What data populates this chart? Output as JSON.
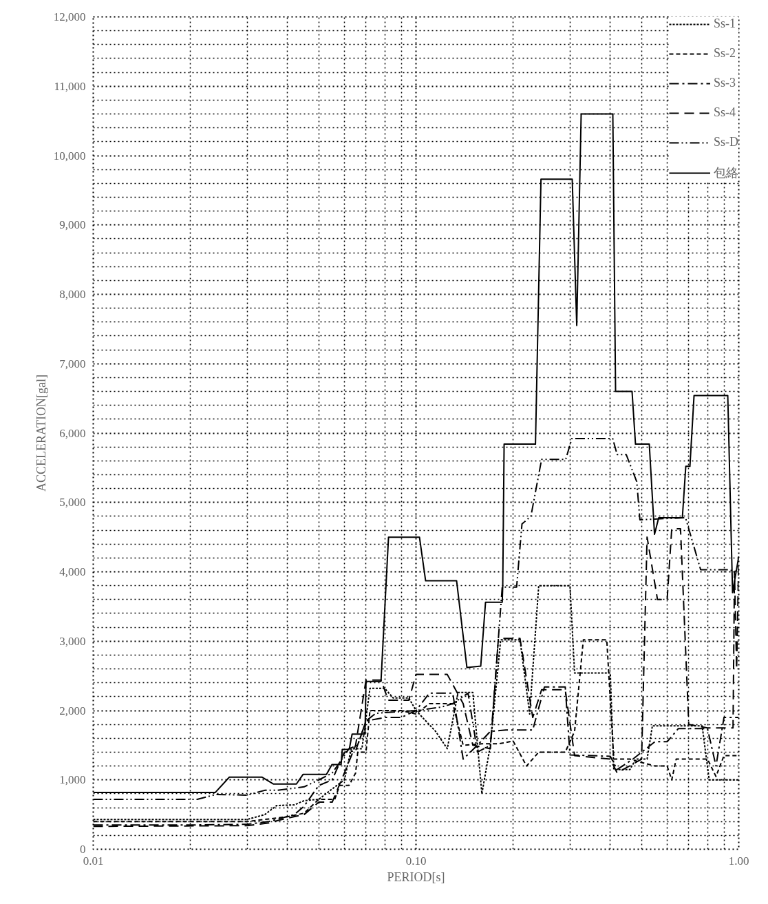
{
  "chart_data": {
    "type": "line",
    "xlabel": "PERIOD[s]",
    "ylabel": "ACCELERATION[gal]",
    "log": "x",
    "xlim": [
      0.01,
      1.0
    ],
    "ylim": [
      0,
      12000
    ],
    "xticks": [
      {
        "value": 0.01,
        "label": "0.01"
      },
      {
        "value": 0.1,
        "label": "0.10"
      },
      {
        "value": 1.0,
        "label": "1.00"
      }
    ],
    "yticks": [
      {
        "value": 0,
        "label": "0"
      },
      {
        "value": 1000,
        "label": "1,000"
      },
      {
        "value": 2000,
        "label": "2,000"
      },
      {
        "value": 3000,
        "label": "3,000"
      },
      {
        "value": 4000,
        "label": "4,000"
      },
      {
        "value": 5000,
        "label": "5,000"
      },
      {
        "value": 6000,
        "label": "6,000"
      },
      {
        "value": 7000,
        "label": "7,000"
      },
      {
        "value": 8000,
        "label": "8,000"
      },
      {
        "value": 9000,
        "label": "9,000"
      },
      {
        "value": 10000,
        "label": "10,000"
      },
      {
        "value": 11000,
        "label": "11,000"
      },
      {
        "value": 12000,
        "label": "12,000"
      }
    ],
    "grid": true,
    "legend": "top right",
    "marker": "none",
    "series": [
      {
        "name": "Ss-1",
        "color": "#000000",
        "line_style": "dotted",
        "x": [
          0.01,
          0.03,
          0.034,
          0.037,
          0.042,
          0.045,
          0.05,
          0.055,
          0.06,
          0.063,
          0.068,
          0.072,
          0.08,
          0.085,
          0.095,
          0.1,
          0.115,
          0.125,
          0.135,
          0.15,
          0.16,
          0.17,
          0.183,
          0.21,
          0.225,
          0.24,
          0.3,
          0.31,
          0.4,
          0.41,
          0.46,
          0.48,
          0.52,
          0.54,
          0.77,
          0.81,
          1.0
        ],
        "values": [
          430,
          430,
          500,
          630,
          640,
          700,
          720,
          870,
          1000,
          1450,
          1450,
          2320,
          2320,
          2180,
          2180,
          2000,
          1700,
          1450,
          2260,
          2260,
          800,
          1500,
          3020,
          3020,
          1950,
          3800,
          3800,
          2540,
          2540,
          1150,
          1150,
          1300,
          1300,
          1780,
          1780,
          1000,
          1000
        ]
      },
      {
        "name": "Ss-2",
        "color": "#000000",
        "line_style": "dashed",
        "x": [
          0.01,
          0.03,
          0.034,
          0.04,
          0.045,
          0.05,
          0.056,
          0.058,
          0.062,
          0.065,
          0.066,
          0.07,
          0.072,
          0.09,
          0.1,
          0.11,
          0.13,
          0.14,
          0.16,
          0.18,
          0.2,
          0.22,
          0.24,
          0.29,
          0.31,
          0.33,
          0.39,
          0.41,
          0.46,
          0.5,
          0.55,
          0.6,
          0.62,
          0.64,
          0.8,
          0.85,
          0.9,
          1.0
        ],
        "values": [
          400,
          400,
          430,
          470,
          520,
          720,
          720,
          920,
          920,
          1100,
          1400,
          1400,
          2000,
          2000,
          1950,
          2100,
          2100,
          1500,
          1520,
          1520,
          1560,
          1200,
          1400,
          1400,
          1700,
          3020,
          3020,
          1300,
          1300,
          1250,
          1200,
          1200,
          1000,
          1300,
          1300,
          1050,
          1350,
          1350
        ]
      },
      {
        "name": "Ss-3",
        "color": "#000000",
        "line_style": "dashdot",
        "x": [
          0.01,
          0.02,
          0.03,
          0.035,
          0.042,
          0.045,
          0.05,
          0.055,
          0.06,
          0.065,
          0.07,
          0.08,
          0.09,
          0.1,
          0.11,
          0.13,
          0.14,
          0.155,
          0.17,
          0.19,
          0.23,
          0.25,
          0.29,
          0.3,
          0.4,
          0.42,
          0.47,
          0.55,
          0.6,
          0.65,
          0.8,
          0.85,
          0.9,
          1.0
        ],
        "values": [
          350,
          350,
          360,
          400,
          500,
          620,
          920,
          1000,
          1400,
          1420,
          1850,
          1900,
          1900,
          2000,
          2250,
          2250,
          1300,
          1500,
          1700,
          1720,
          1720,
          2340,
          2340,
          1360,
          1340,
          1150,
          1300,
          1550,
          1550,
          1740,
          1740,
          1200,
          1900,
          1900
        ]
      },
      {
        "name": "Ss-4",
        "color": "#000000",
        "line_style": "longdash",
        "x": [
          0.01,
          0.03,
          0.035,
          0.04,
          0.045,
          0.05,
          0.055,
          0.06,
          0.065,
          0.07,
          0.078,
          0.082,
          0.095,
          0.1,
          0.125,
          0.14,
          0.15,
          0.17,
          0.18,
          0.21,
          0.23,
          0.245,
          0.29,
          0.31,
          0.4,
          0.42,
          0.5,
          0.52,
          0.56,
          0.6,
          0.62,
          0.66,
          0.7,
          0.8,
          0.96,
          0.97,
          0.985,
          1.0
        ],
        "values": [
          330,
          340,
          380,
          450,
          500,
          680,
          680,
          1100,
          1500,
          2440,
          2440,
          2150,
          2150,
          2520,
          2520,
          2100,
          1500,
          1450,
          3040,
          3040,
          1900,
          2300,
          2300,
          1350,
          1300,
          1100,
          1300,
          4500,
          3600,
          3600,
          4620,
          4620,
          1800,
          1750,
          1750,
          4000,
          2600,
          4220
        ]
      },
      {
        "name": "Ss-D",
        "color": "#000000",
        "line_style": "dashdotdot",
        "x": [
          0.01,
          0.021,
          0.024,
          0.03,
          0.034,
          0.037,
          0.045,
          0.05,
          0.055,
          0.058,
          0.062,
          0.066,
          0.07,
          0.075,
          0.1,
          0.12,
          0.13,
          0.145,
          0.155,
          0.17,
          0.185,
          0.205,
          0.213,
          0.227,
          0.245,
          0.291,
          0.304,
          0.407,
          0.42,
          0.448,
          0.483,
          0.494,
          0.684,
          0.762,
          0.925,
          1.0
        ],
        "values": [
          720,
          720,
          790,
          780,
          850,
          850,
          900,
          1000,
          1100,
          1250,
          1450,
          1500,
          1850,
          1960,
          2000,
          2050,
          2100,
          2250,
          1400,
          1500,
          3780,
          3780,
          4690,
          4800,
          5620,
          5620,
          5920,
          5920,
          5690,
          5690,
          5300,
          4750,
          4780,
          4030,
          4030,
          4000
        ]
      },
      {
        "name": "包絡",
        "color": "#000000",
        "line_style": "solid",
        "x": [
          0.01,
          0.0239,
          0.0264,
          0.0333,
          0.0362,
          0.0426,
          0.0447,
          0.0528,
          0.0549,
          0.0586,
          0.0591,
          0.0621,
          0.0634,
          0.0695,
          0.07,
          0.0779,
          0.0822,
          0.1025,
          0.1071,
          0.1336,
          0.1438,
          0.1587,
          0.1642,
          0.185,
          0.1857,
          0.1875,
          0.2345,
          0.2439,
          0.3048,
          0.3148,
          0.3249,
          0.4072,
          0.4153,
          0.4671,
          0.4787,
          0.5282,
          0.5483,
          0.5649,
          0.6688,
          0.6853,
          0.7058,
          0.7269,
          0.9246,
          0.9568,
          1.0
        ],
        "values": [
          820,
          820,
          1040,
          1040,
          940,
          940,
          1080,
          1080,
          1220,
          1220,
          1440,
          1440,
          1660,
          1660,
          2420,
          2420,
          4500,
          4500,
          3870,
          3870,
          2620,
          2640,
          3560,
          3560,
          3800,
          5840,
          5840,
          9660,
          9660,
          7550,
          10600,
          10600,
          6600,
          6600,
          5840,
          5840,
          4540,
          4780,
          4780,
          5520,
          5520,
          6540,
          6540,
          3700,
          4220
        ]
      }
    ]
  }
}
